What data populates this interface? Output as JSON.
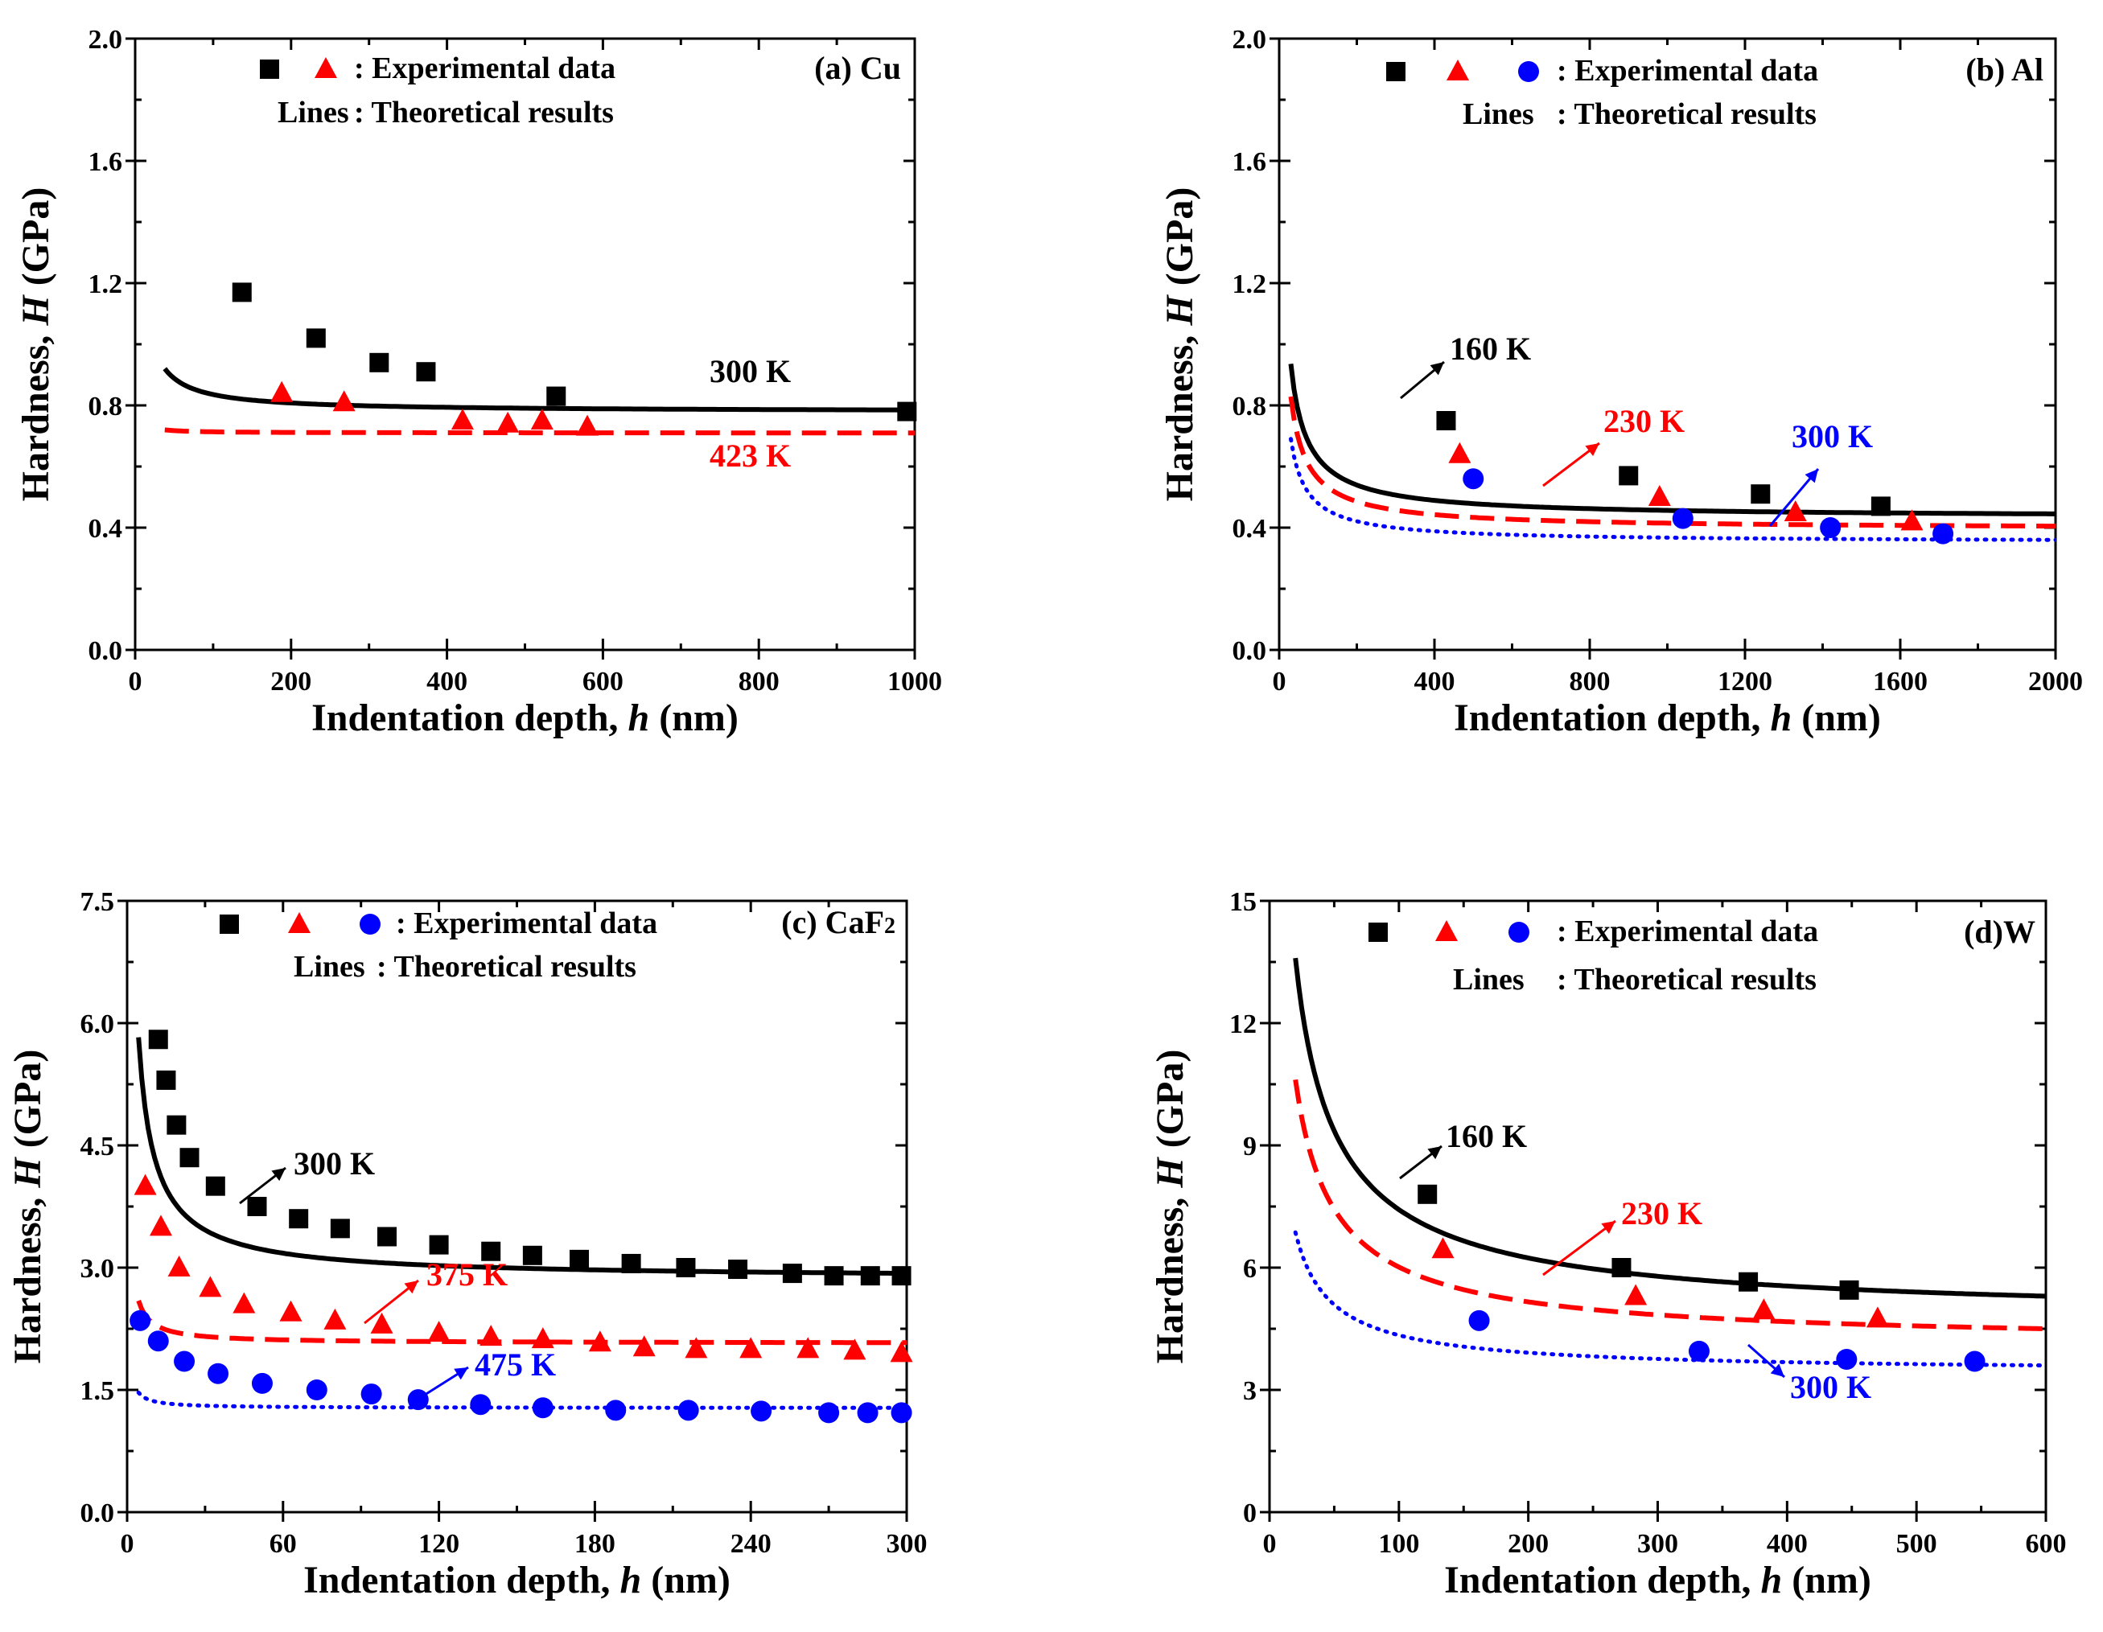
{
  "chart_data": [
    {
      "type": "scatter",
      "panel_label": "(a) Cu",
      "xlabel_prefix": "Indentation depth, ",
      "xlabel_var": "h",
      "xlabel_suffix": " (nm)",
      "ylabel_prefix": "Hardness, ",
      "ylabel_var": "H",
      "ylabel_suffix": " (GPa)",
      "xlim": [
        0,
        1000
      ],
      "ylim": [
        0,
        2.0
      ],
      "xticks": [
        0,
        200,
        400,
        600,
        800,
        1000
      ],
      "xtick_labels": [
        "0",
        "200",
        "400",
        "600",
        "800",
        "1000"
      ],
      "yticks": [
        0,
        0.4,
        0.8,
        1.2,
        1.6,
        2.0
      ],
      "ytick_labels": [
        "0.0",
        "0.4",
        "0.8",
        "1.2",
        "1.6",
        "2.0"
      ],
      "legend_experimental": ": Experimental data",
      "legend_lines_label": "Lines",
      "legend_lines_text": ": Theoretical results",
      "series": [
        {
          "name": "300 K",
          "color": "#000000",
          "marker": "square",
          "line": "solid",
          "model": {
            "h0": 15,
            "h_ref": 1000,
            "H_ref": 0.785
          },
          "points": [
            [
              137,
              1.17
            ],
            [
              232,
              1.02
            ],
            [
              313,
              0.94
            ],
            [
              373,
              0.91
            ],
            [
              540,
              0.83
            ],
            [
              990,
              0.78
            ]
          ],
          "label": "300 K"
        },
        {
          "name": "423 K",
          "color": "#ff0000",
          "marker": "triangle",
          "line": "dashed",
          "model": {
            "h0": 1.1,
            "h_ref": 1000,
            "H_ref": 0.71
          },
          "points": [
            [
              188,
              0.84
            ],
            [
              268,
              0.81
            ],
            [
              420,
              0.75
            ],
            [
              478,
              0.74
            ],
            [
              522,
              0.75
            ],
            [
              580,
              0.73
            ]
          ],
          "label": "423 K"
        }
      ]
    },
    {
      "type": "scatter",
      "panel_label": "(b) Al",
      "xlabel_prefix": "Indentation depth, ",
      "xlabel_var": "h",
      "xlabel_suffix": " (nm)",
      "ylabel_prefix": "Hardness, ",
      "ylabel_var": "H",
      "ylabel_suffix": " (GPa)",
      "xlim": [
        0,
        2000
      ],
      "ylim": [
        0,
        2.0
      ],
      "xticks": [
        0,
        400,
        800,
        1200,
        1600,
        2000
      ],
      "xtick_labels": [
        "0",
        "400",
        "800",
        "1200",
        "1600",
        "2000"
      ],
      "yticks": [
        0,
        0.4,
        0.8,
        1.2,
        1.6,
        2.0
      ],
      "ytick_labels": [
        "0.0",
        "0.4",
        "0.8",
        "1.2",
        "1.6",
        "2.0"
      ],
      "legend_experimental": ": Experimental data",
      "legend_lines_label": "Lines",
      "legend_lines_text": ": Theoretical results",
      "series": [
        {
          "name": "160 K",
          "color": "#000000",
          "marker": "square",
          "line": "solid",
          "model": {
            "h0": 110,
            "h_ref": 2000,
            "H_ref": 0.445
          },
          "points": [
            [
              430,
              0.75
            ],
            [
              900,
              0.57
            ],
            [
              1240,
              0.51
            ],
            [
              1550,
              0.47
            ]
          ],
          "label": "160 K"
        },
        {
          "name": "230 K",
          "color": "#ff0000",
          "marker": "triangle",
          "line": "dashed",
          "model": {
            "h0": 102,
            "h_ref": 2000,
            "H_ref": 0.405
          },
          "points": [
            [
              465,
              0.64
            ],
            [
              980,
              0.5
            ],
            [
              1330,
              0.45
            ],
            [
              1630,
              0.42
            ]
          ],
          "label": "230 K"
        },
        {
          "name": "300 K",
          "color": "#0000ff",
          "marker": "circle",
          "line": "dotted",
          "model": {
            "h0": 85,
            "h_ref": 2000,
            "H_ref": 0.36
          },
          "points": [
            [
              500,
              0.56
            ],
            [
              1040,
              0.43
            ],
            [
              1420,
              0.4
            ],
            [
              1710,
              0.38
            ]
          ],
          "label": "300 K"
        }
      ]
    },
    {
      "type": "scatter",
      "panel_label": "(c) CaF",
      "panel_label_sub": "2",
      "xlabel_prefix": "Indentation depth, ",
      "xlabel_var": "h",
      "xlabel_suffix": " (nm)",
      "ylabel_prefix": "Hardness, ",
      "ylabel_var": "H",
      "ylabel_suffix": " (GPa)",
      "xlim": [
        0,
        300
      ],
      "ylim": [
        0,
        7.5
      ],
      "xticks": [
        0,
        60,
        120,
        180,
        240,
        300
      ],
      "xtick_labels": [
        "0",
        "60",
        "120",
        "180",
        "240",
        "300"
      ],
      "yticks": [
        0,
        1.5,
        3.0,
        4.5,
        6.0,
        7.5
      ],
      "ytick_labels": [
        "0.0",
        "1.5",
        "3.0",
        "4.5",
        "6.0",
        "7.5"
      ],
      "legend_experimental": ": Experimental data",
      "legend_lines_label": "Lines",
      "legend_lines_text": ": Theoretical results",
      "series": [
        {
          "name": "300 K",
          "color": "#000000",
          "marker": "square",
          "line": "solid",
          "model": {
            "h0": 13.8,
            "h_ref": 300,
            "H_ref": 2.93
          },
          "points": [
            [
              12,
              5.8
            ],
            [
              15,
              5.3
            ],
            [
              19,
              4.75
            ],
            [
              24,
              4.35
            ],
            [
              34,
              4.0
            ],
            [
              50,
              3.75
            ],
            [
              66,
              3.6
            ],
            [
              82,
              3.48
            ],
            [
              100,
              3.38
            ],
            [
              120,
              3.28
            ],
            [
              140,
              3.2
            ],
            [
              156,
              3.15
            ],
            [
              174,
              3.1
            ],
            [
              194,
              3.05
            ],
            [
              215,
              3.0
            ],
            [
              235,
              2.98
            ],
            [
              256,
              2.93
            ],
            [
              272,
              2.9
            ],
            [
              286,
              2.9
            ],
            [
              298,
              2.9
            ]
          ],
          "label": "300 K"
        },
        {
          "name": "375 K",
          "color": "#ff0000",
          "marker": "triangle",
          "line": "dashed",
          "model": {
            "h0": 2.5,
            "h_ref": 300,
            "H_ref": 2.08
          },
          "points": [
            [
              7,
              4.0
            ],
            [
              13,
              3.5
            ],
            [
              20,
              3.0
            ],
            [
              32,
              2.75
            ],
            [
              45,
              2.55
            ],
            [
              63,
              2.45
            ],
            [
              80,
              2.35
            ],
            [
              98,
              2.3
            ],
            [
              120,
              2.2
            ],
            [
              140,
              2.15
            ],
            [
              160,
              2.12
            ],
            [
              182,
              2.08
            ],
            [
              199,
              2.02
            ],
            [
              219,
              2.0
            ],
            [
              240,
              2.0
            ],
            [
              262,
              2.0
            ],
            [
              280,
              1.98
            ],
            [
              298,
              1.95
            ]
          ],
          "label": "375 K"
        },
        {
          "name": "475 K",
          "color": "#0000ff",
          "marker": "circle",
          "line": "dotted",
          "model": {
            "h0": 1.4,
            "h_ref": 300,
            "H_ref": 1.28
          },
          "points": [
            [
              5,
              2.35
            ],
            [
              12,
              2.1
            ],
            [
              22,
              1.85
            ],
            [
              35,
              1.7
            ],
            [
              52,
              1.58
            ],
            [
              73,
              1.5
            ],
            [
              94,
              1.45
            ],
            [
              112,
              1.38
            ],
            [
              136,
              1.32
            ],
            [
              160,
              1.28
            ],
            [
              188,
              1.25
            ],
            [
              216,
              1.25
            ],
            [
              244,
              1.24
            ],
            [
              270,
              1.22
            ],
            [
              285,
              1.22
            ],
            [
              298,
              1.22
            ]
          ],
          "label": "475 K"
        }
      ]
    },
    {
      "type": "scatter",
      "panel_label": "(d)W",
      "xlabel_prefix": "Indentation depth, ",
      "xlabel_var": "h",
      "xlabel_suffix": " (nm)",
      "ylabel_prefix": "Hardness, ",
      "ylabel_var": "H",
      "ylabel_suffix": " (GPa)",
      "xlim": [
        0,
        600
      ],
      "ylim": [
        0,
        15
      ],
      "xticks": [
        0,
        100,
        200,
        300,
        400,
        500,
        600
      ],
      "xtick_labels": [
        "0",
        "100",
        "200",
        "300",
        "400",
        "500",
        "600"
      ],
      "yticks": [
        0,
        3,
        6,
        9,
        12,
        15
      ],
      "ytick_labels": [
        "0",
        "3",
        "6",
        "9",
        "12",
        "15"
      ],
      "legend_experimental": ": Experimental data",
      "legend_lines_label": "Lines",
      "legend_lines_text": ": Theoretical results",
      "series": [
        {
          "name": "160 K",
          "color": "#000000",
          "marker": "square",
          "line": "solid",
          "model": {
            "h0": 143,
            "h_ref": 600,
            "H_ref": 5.3
          },
          "points": [
            [
              122,
              7.8
            ],
            [
              272,
              6.0
            ],
            [
              370,
              5.65
            ],
            [
              448,
              5.45
            ]
          ],
          "label": "160 K"
        },
        {
          "name": "230 K",
          "color": "#ff0000",
          "marker": "triangle",
          "line": "dashed",
          "model": {
            "h0": 112,
            "h_ref": 600,
            "H_ref": 4.5
          },
          "points": [
            [
              134,
              6.45
            ],
            [
              283,
              5.3
            ],
            [
              382,
              4.95
            ],
            [
              470,
              4.75
            ]
          ],
          "label": "230 K"
        },
        {
          "name": "300 K",
          "color": "#0000ff",
          "marker": "circle",
          "line": "dotted",
          "model": {
            "h0": 60,
            "h_ref": 600,
            "H_ref": 3.6
          },
          "points": [
            [
              162,
              4.7
            ],
            [
              332,
              3.95
            ],
            [
              446,
              3.75
            ],
            [
              545,
              3.7
            ]
          ],
          "label": "300 K"
        }
      ]
    }
  ]
}
